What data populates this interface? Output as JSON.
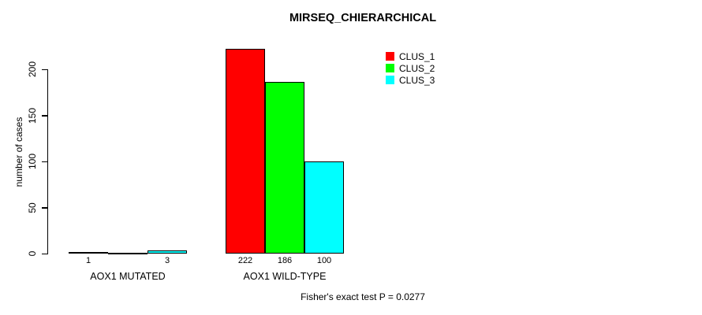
{
  "chart_data": {
    "type": "bar",
    "title": "MIRSEQ_CHIERARCHICAL",
    "ylabel": "number of cases",
    "xlabel": "",
    "ylim": [
      0,
      200
    ],
    "yticks": [
      0,
      50,
      100,
      150,
      200
    ],
    "grid": false,
    "legend_position": "top-right",
    "series": [
      {
        "name": "CLUS_1",
        "color": "#ff0000"
      },
      {
        "name": "CLUS_2",
        "color": "#00ff00"
      },
      {
        "name": "CLUS_3",
        "color": "#00ffff"
      }
    ],
    "groups": [
      {
        "label": "AOX1 MUTATED",
        "values": [
          1,
          0,
          3
        ],
        "value_labels": [
          "1",
          "",
          "3"
        ]
      },
      {
        "label": "AOX1 WILD-TYPE",
        "values": [
          222,
          186,
          100
        ],
        "value_labels": [
          "222",
          "186",
          "100"
        ]
      }
    ],
    "annotation": "Fisher's exact test P = 0.0277"
  }
}
